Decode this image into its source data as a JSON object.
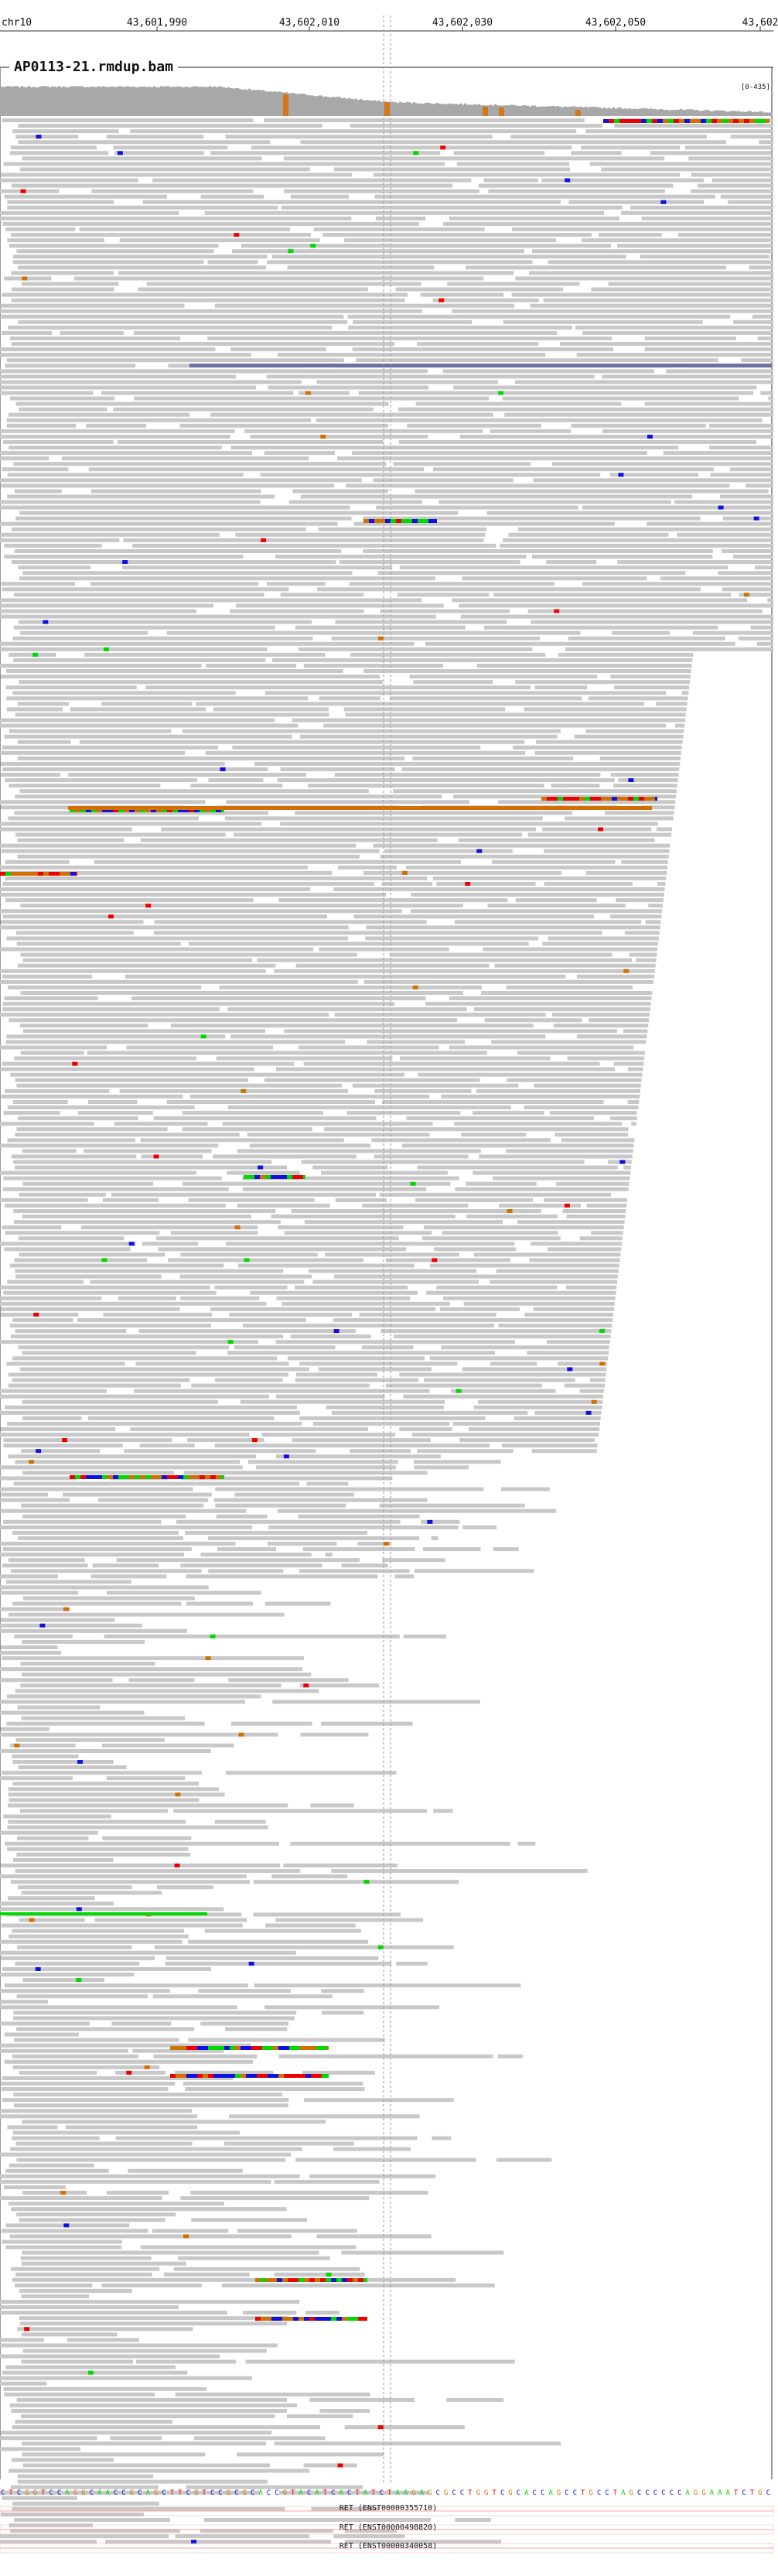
{
  "locus": {
    "chromosome": "chr10",
    "ticks": [
      "43,601,990",
      "43,602,010",
      "43,602,030",
      "43,602,050",
      "43,602"
    ]
  },
  "track": {
    "title": "AP0113-21.rmdup.bam",
    "coverage_range": "[0-435]"
  },
  "reference": {
    "sequence": "CTCGGTCCAGGCAACCGCAGCTTCGTCCGCGCACCGTACATCACTATCTAAGAGCGCCTGGTCGCACCAGCCTGCCTAGCCCCCCAGGAAATCTGC"
  },
  "transcripts": [
    {
      "label": "RET (ENST00000355710)"
    },
    {
      "label": "RET (ENST00000498820)"
    },
    {
      "label": "RET (ENST00000340058)"
    }
  ],
  "colors": {
    "read": "#c8c8c8",
    "coverage": "#a8a8a8",
    "mismatch_ref_highlight": "#d5761a",
    "base_A": "#00d800",
    "base_C": "#1010e0",
    "base_G": "#d17105",
    "base_T": "#ee0000",
    "insertion": "#7070a0",
    "transcript": "#f4a6a6",
    "center_line": "#9a9a9a"
  }
}
